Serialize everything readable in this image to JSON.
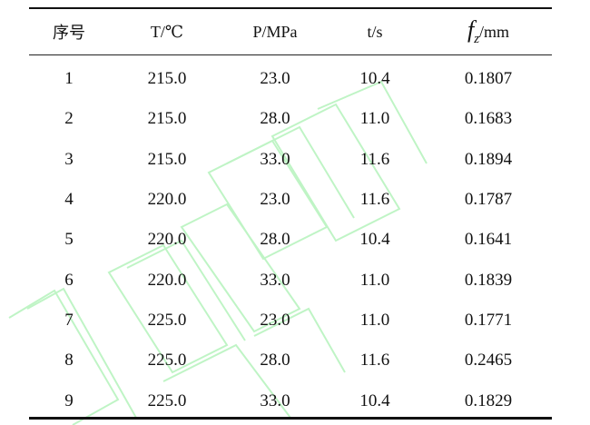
{
  "table": {
    "headers": [
      "序号",
      "T/℃",
      "P/MPa",
      "t/s",
      "fz/mm"
    ],
    "header_fz": {
      "symbol": "f",
      "subscript": "z",
      "unit": "/mm"
    },
    "rows": [
      [
        "1",
        "215.0",
        "23.0",
        "10.4",
        "0.1807"
      ],
      [
        "2",
        "215.0",
        "28.0",
        "11.0",
        "0.1683"
      ],
      [
        "3",
        "215.0",
        "33.0",
        "11.6",
        "0.1894"
      ],
      [
        "4",
        "220.0",
        "23.0",
        "11.6",
        "0.1787"
      ],
      [
        "5",
        "220.0",
        "28.0",
        "10.4",
        "0.1641"
      ],
      [
        "6",
        "220.0",
        "33.0",
        "11.0",
        "0.1839"
      ],
      [
        "7",
        "225.0",
        "23.0",
        "11.0",
        "0.1771"
      ],
      [
        "8",
        "225.0",
        "28.0",
        "11.6",
        "0.2465"
      ],
      [
        "9",
        "225.0",
        "33.0",
        "10.4",
        "0.1829"
      ]
    ]
  },
  "colors": {
    "rule": "#111111",
    "text": "#111111",
    "watermark": "#9ef0a8"
  }
}
